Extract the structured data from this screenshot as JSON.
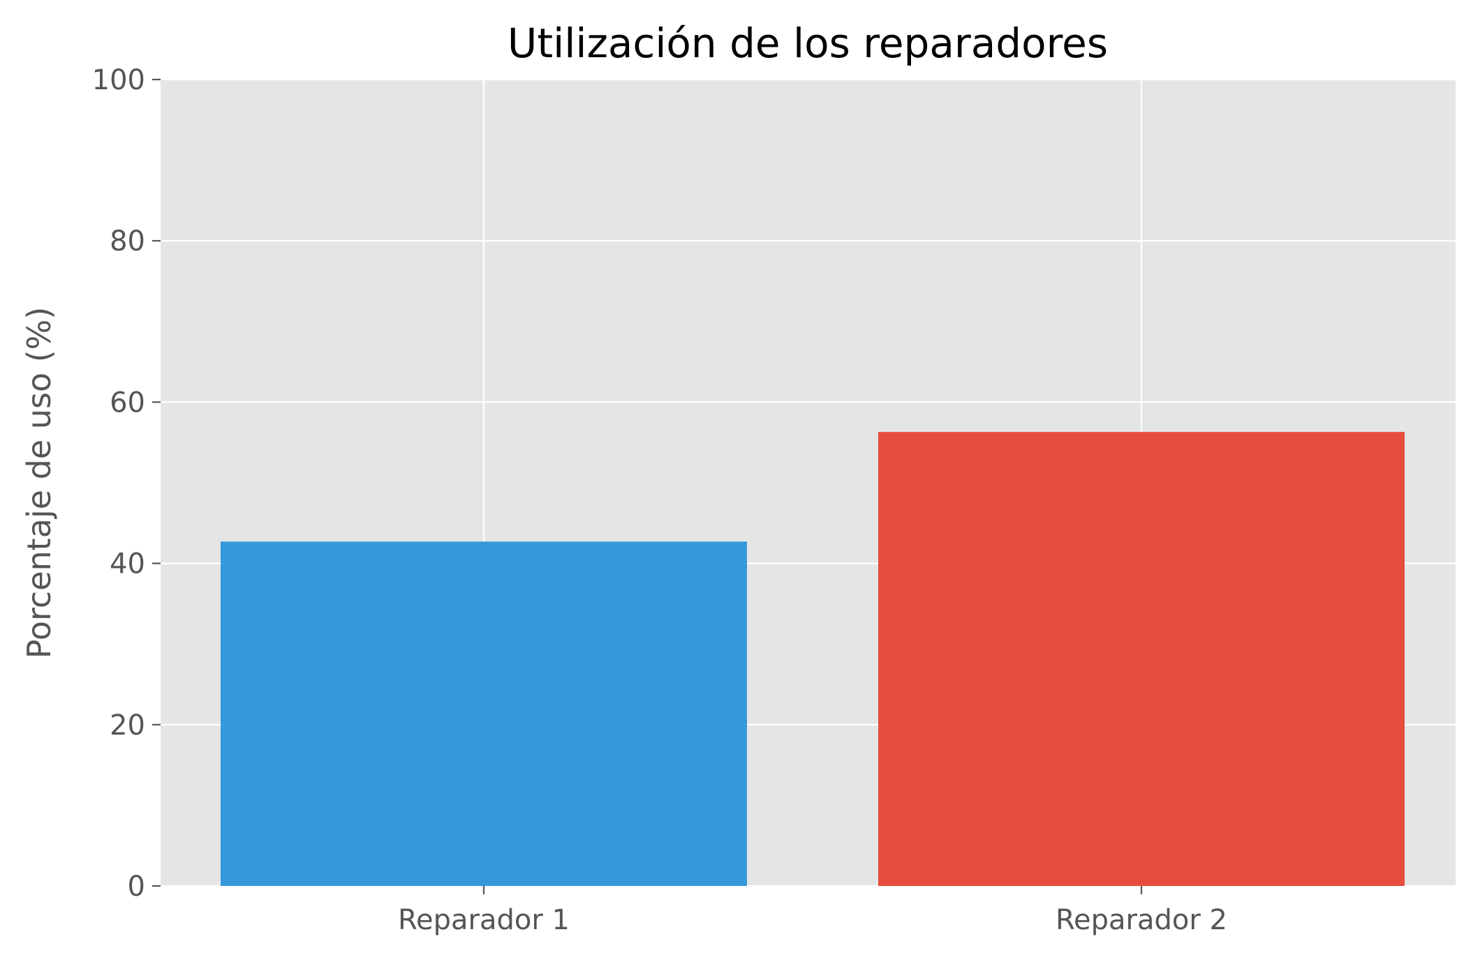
{
  "chart_data": {
    "type": "bar",
    "title": "Utilización de los reparadores",
    "xlabel": "",
    "ylabel": "Porcentaje de uso (%)",
    "categories": [
      "Reparador 1",
      "Reparador 2"
    ],
    "values": [
      42.7,
      56.3
    ],
    "ylim": [
      0,
      100
    ],
    "yticks": [
      "0",
      "20",
      "40",
      "60",
      "80",
      "100"
    ],
    "grid": true,
    "legend": "none",
    "colors": {
      "bars": [
        "#3498db",
        "#e74c3c"
      ],
      "plot_background": "#e5e5e5",
      "grid": "#ffffff",
      "tick_text": "#555555",
      "title_text": "#000000"
    }
  }
}
